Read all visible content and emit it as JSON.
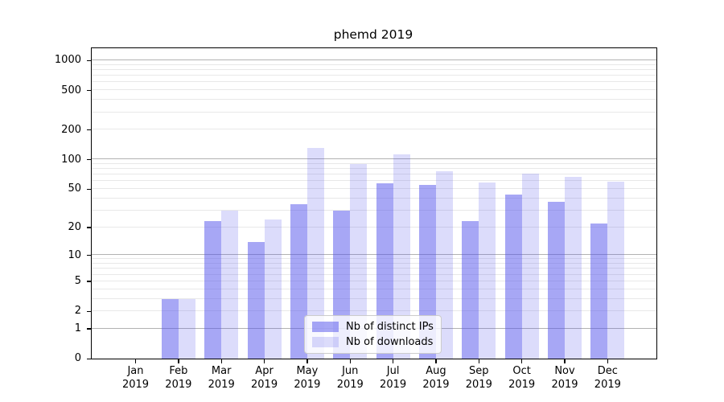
{
  "title": "phemd 2019",
  "chart_data": {
    "type": "bar",
    "title": "phemd 2019",
    "categories": [
      "Jan 2019",
      "Feb 2019",
      "Mar 2019",
      "Apr 2019",
      "May 2019",
      "Jun 2019",
      "Jul 2019",
      "Aug 2019",
      "Sep 2019",
      "Oct 2019",
      "Nov 2019",
      "Dec 2019"
    ],
    "series": [
      {
        "name": "Nb of distinct IPs",
        "key": "distinct-ips",
        "color": "rgba(80,80,235,0.5)",
        "values": [
          0,
          3,
          23,
          14,
          35,
          30,
          57,
          55,
          23,
          44,
          37,
          22
        ]
      },
      {
        "name": "Nb of downloads",
        "key": "downloads",
        "color": "rgba(80,80,235,0.2)",
        "values": [
          0,
          3,
          30,
          24,
          131,
          89,
          113,
          76,
          58,
          72,
          66,
          59
        ]
      }
    ],
    "xlabel": "",
    "ylabel": "",
    "y_axis": {
      "scale": "log10(1+v)",
      "tick_values": [
        0,
        1,
        2,
        5,
        10,
        20,
        50,
        100,
        200,
        500,
        1000
      ],
      "tick_labels": [
        "0",
        "1",
        "2",
        "5",
        "10",
        "20",
        "50",
        "100",
        "200",
        "500",
        "1000"
      ],
      "major_gridlines": [
        1,
        10,
        100,
        1000
      ],
      "minor_gridlines": [
        2,
        3,
        4,
        5,
        6,
        7,
        8,
        9,
        20,
        30,
        40,
        50,
        60,
        70,
        80,
        90,
        200,
        300,
        400,
        500,
        600,
        700,
        800,
        900
      ],
      "ylim": [
        0,
        1300
      ]
    },
    "grid": true,
    "legend_position": "lower center"
  },
  "colors": {
    "background": "#ffffff",
    "axis": "#000000",
    "major_grid": "#b2b2b2",
    "minor_grid": "#e8e8e8",
    "bar_distinct_ips": "rgba(80,80,235,0.5)",
    "bar_downloads": "rgba(80,80,235,0.2)"
  }
}
